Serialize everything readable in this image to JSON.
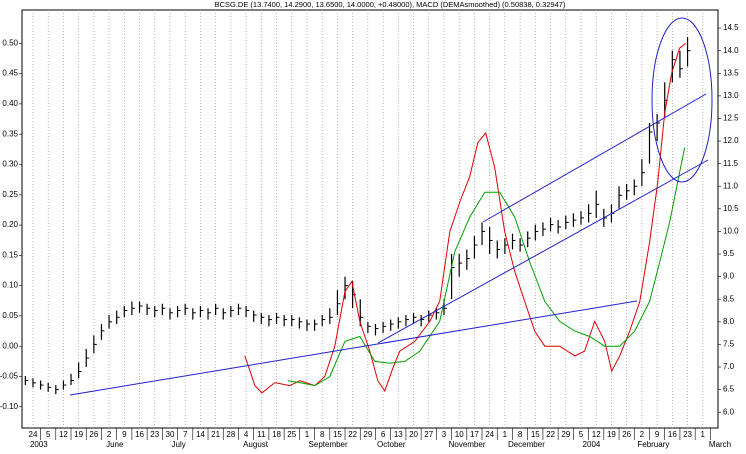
{
  "chart_data": {
    "type": "ohlc",
    "title": "BCSG.DE (13.7400, 14.2900, 13.6500, 14.0000, +0.48000), MACD (DEMAsmoothed) (0.50838, 0.32947)",
    "grid": "x",
    "xlim": [
      -0.72,
      45
    ],
    "xticks": [
      {
        "value": 0,
        "label": "24"
      },
      {
        "value": 1,
        "label": "5"
      },
      {
        "value": 2,
        "label": "12"
      },
      {
        "value": 3,
        "label": "19"
      },
      {
        "value": 4,
        "label": "26"
      },
      {
        "value": 5,
        "label": "2"
      },
      {
        "value": 6,
        "label": "9"
      },
      {
        "value": 7,
        "label": "16"
      },
      {
        "value": 8,
        "label": "23"
      },
      {
        "value": 9,
        "label": "30"
      },
      {
        "value": 10,
        "label": "7"
      },
      {
        "value": 11,
        "label": "14"
      },
      {
        "value": 12,
        "label": "21"
      },
      {
        "value": 13,
        "label": "28"
      },
      {
        "value": 14,
        "label": "4"
      },
      {
        "value": 15,
        "label": "11"
      },
      {
        "value": 16,
        "label": "18"
      },
      {
        "value": 17,
        "label": "25"
      },
      {
        "value": 18,
        "label": "1"
      },
      {
        "value": 19,
        "label": "8"
      },
      {
        "value": 20,
        "label": "15"
      },
      {
        "value": 21,
        "label": "22"
      },
      {
        "value": 22,
        "label": "29"
      },
      {
        "value": 23,
        "label": "6"
      },
      {
        "value": 24,
        "label": "13"
      },
      {
        "value": 25,
        "label": "20"
      },
      {
        "value": 26,
        "label": "27"
      },
      {
        "value": 27,
        "label": "3"
      },
      {
        "value": 28,
        "label": "10"
      },
      {
        "value": 29,
        "label": "17"
      },
      {
        "value": 30,
        "label": "24"
      },
      {
        "value": 31,
        "label": "1"
      },
      {
        "value": 32,
        "label": "8"
      },
      {
        "value": 33,
        "label": "15"
      },
      {
        "value": 34,
        "label": "22"
      },
      {
        "value": 35,
        "label": "29"
      },
      {
        "value": 36,
        "label": "5"
      },
      {
        "value": 37,
        "label": "12"
      },
      {
        "value": 38,
        "label": "19"
      },
      {
        "value": 39,
        "label": "26"
      },
      {
        "value": 40,
        "label": "2"
      },
      {
        "value": 41,
        "label": "9"
      },
      {
        "value": 42,
        "label": "16"
      },
      {
        "value": 43,
        "label": "23"
      },
      {
        "value": 44,
        "label": "1"
      }
    ],
    "month_ticks": [
      {
        "value": 0,
        "label": "2003"
      },
      {
        "value": 5,
        "label": "June"
      },
      {
        "value": 9.3,
        "label": "July"
      },
      {
        "value": 14,
        "label": "August"
      },
      {
        "value": 18.3,
        "label": "September"
      },
      {
        "value": 22.8,
        "label": "October"
      },
      {
        "value": 27.5,
        "label": "November"
      },
      {
        "value": 31.4,
        "label": "December"
      },
      {
        "value": 36.3,
        "label": "2004"
      },
      {
        "value": 39.9,
        "label": "February"
      },
      {
        "value": 44.6,
        "label": "March"
      }
    ],
    "ylim": [
      -0.135,
      0.555
    ],
    "yticks": [
      {
        "value": -0.1,
        "label": "-0.10"
      },
      -0.05,
      {
        "value": 0,
        "label": "0.00"
      },
      0.05,
      {
        "value": 0.1,
        "label": "0.10"
      },
      0.15,
      {
        "value": 0.2,
        "label": "0.20"
      },
      0.25,
      {
        "value": 0.3,
        "label": "0.30"
      },
      0.35,
      {
        "value": 0.4,
        "label": "0.40"
      },
      0.45,
      {
        "value": 0.5,
        "label": "0.50"
      }
    ],
    "y2lim": [
      5.65,
      14.9
    ],
    "y2ticks": [
      {
        "value": 6,
        "label": "6.0"
      },
      6.5,
      {
        "value": 7,
        "label": "7.0"
      },
      7.5,
      {
        "value": 8,
        "label": "8.0"
      },
      8.5,
      {
        "value": 9,
        "label": "9.0"
      },
      9.5,
      {
        "value": 10,
        "label": "10.0"
      },
      10.5,
      {
        "value": 11,
        "label": "11.0"
      },
      11.5,
      {
        "value": 12,
        "label": "12.0"
      },
      12.5,
      {
        "value": 13,
        "label": "13.0"
      },
      13.5,
      {
        "value": 14,
        "label": "14.0"
      },
      14.5
    ],
    "series": [
      {
        "type": "ohlc",
        "axis": "y2",
        "color": "#000000",
        "x": [
          -0.5,
          0,
          0.5,
          1,
          1.5,
          2,
          2.5,
          3,
          3.5,
          4,
          4.5,
          5,
          5.5,
          6,
          6.5,
          7,
          7.5,
          8,
          8.5,
          9,
          9.5,
          10,
          10.5,
          11,
          11.5,
          12,
          12.5,
          13,
          13.5,
          14,
          14.5,
          15,
          15.5,
          16,
          16.5,
          17,
          17.5,
          18,
          18.5,
          19,
          19.5,
          20,
          20.5,
          21,
          21.5,
          22,
          22.5,
          23,
          23.5,
          24,
          24.5,
          25,
          25.5,
          26,
          26.5,
          27,
          27.5,
          28,
          28.5,
          29,
          29.5,
          30,
          30.5,
          31,
          31.5,
          32,
          32.5,
          33,
          33.5,
          34,
          34.5,
          35,
          35.5,
          36,
          36.5,
          37,
          37.5,
          38,
          38.5,
          39,
          39.5,
          40,
          40.5,
          41,
          41.5,
          42,
          42.5,
          43
        ],
        "high": [
          6.8,
          6.75,
          6.7,
          6.65,
          6.6,
          6.7,
          6.85,
          7.1,
          7.4,
          7.7,
          7.95,
          8.15,
          8.25,
          8.35,
          8.45,
          8.45,
          8.4,
          8.35,
          8.4,
          8.3,
          8.35,
          8.4,
          8.3,
          8.35,
          8.3,
          8.4,
          8.3,
          8.35,
          8.4,
          8.35,
          8.25,
          8.2,
          8.15,
          8.2,
          8.15,
          8.15,
          8.1,
          8.05,
          8.05,
          8.15,
          8.3,
          8.7,
          9.0,
          8.9,
          8.5,
          8.0,
          7.95,
          8.0,
          8.05,
          8.1,
          8.15,
          8.2,
          8.15,
          8.25,
          8.3,
          8.5,
          9.5,
          9.5,
          9.6,
          9.9,
          10.2,
          10.1,
          9.8,
          9.85,
          9.95,
          9.85,
          10.0,
          10.15,
          10.2,
          10.3,
          10.25,
          10.35,
          10.4,
          10.45,
          10.6,
          10.9,
          10.5,
          10.6,
          11.0,
          11.05,
          11.15,
          11.6,
          12.4,
          12.6,
          13.3,
          14.0,
          14.0,
          14.3
        ],
        "low": [
          6.6,
          6.55,
          6.5,
          6.45,
          6.4,
          6.5,
          6.6,
          6.75,
          7.0,
          7.3,
          7.6,
          7.85,
          7.95,
          8.1,
          8.15,
          8.2,
          8.15,
          8.1,
          8.15,
          8.05,
          8.1,
          8.15,
          8.05,
          8.1,
          8.05,
          8.15,
          8.05,
          8.1,
          8.15,
          8.1,
          8.0,
          7.95,
          7.9,
          7.95,
          7.9,
          7.9,
          7.85,
          7.8,
          7.8,
          7.9,
          7.95,
          8.15,
          8.5,
          8.3,
          7.9,
          7.75,
          7.7,
          7.75,
          7.8,
          7.85,
          7.9,
          7.95,
          7.9,
          8.0,
          8.05,
          8.15,
          8.5,
          9.0,
          9.15,
          9.4,
          9.7,
          9.5,
          9.4,
          9.5,
          9.6,
          9.55,
          9.65,
          9.8,
          9.9,
          10.0,
          9.95,
          10.05,
          10.1,
          10.15,
          10.2,
          10.3,
          10.1,
          10.2,
          10.5,
          10.7,
          10.8,
          11.0,
          11.5,
          12.0,
          12.5,
          13.3,
          13.4,
          13.65
        ],
        "close": [
          6.7,
          6.65,
          6.6,
          6.55,
          6.5,
          6.6,
          6.7,
          6.9,
          7.2,
          7.5,
          7.8,
          8.0,
          8.1,
          8.25,
          8.3,
          8.35,
          8.3,
          8.25,
          8.3,
          8.2,
          8.25,
          8.3,
          8.2,
          8.25,
          8.2,
          8.3,
          8.2,
          8.25,
          8.3,
          8.25,
          8.15,
          8.1,
          8.05,
          8.1,
          8.05,
          8.05,
          8.0,
          7.95,
          7.95,
          8.05,
          8.1,
          8.4,
          8.8,
          8.6,
          8.1,
          7.9,
          7.85,
          7.9,
          7.95,
          8.0,
          8.05,
          8.1,
          8.05,
          8.15,
          8.2,
          8.3,
          9.2,
          9.3,
          9.4,
          9.7,
          10.0,
          9.8,
          9.6,
          9.7,
          9.8,
          9.7,
          9.85,
          10.0,
          10.05,
          10.15,
          10.1,
          10.2,
          10.25,
          10.3,
          10.4,
          10.6,
          10.3,
          10.4,
          10.8,
          10.9,
          11.0,
          11.3,
          12.2,
          12.4,
          12.9,
          13.8,
          13.6,
          14.0
        ]
      },
      {
        "type": "line",
        "color": "#e00000",
        "x": [
          13.92,
          14.58,
          15.04,
          15.89,
          16.87,
          17.53,
          18.52,
          19.17,
          19.83,
          20.49,
          20.95,
          21.47,
          22.13,
          22.65,
          23.11,
          23.57,
          24.1,
          25.08,
          26.07,
          26.72,
          27.38,
          28.04,
          28.69,
          29.22,
          29.74,
          30.33,
          30.99,
          31.65,
          32.3,
          32.96,
          33.62,
          34.6,
          35.59,
          36.24,
          36.9,
          37.56,
          38.02,
          38.54,
          39.2,
          39.86,
          40.51,
          41.04,
          41.5,
          41.96,
          42.48,
          42.88
        ],
        "values": [
          -0.016,
          -0.065,
          -0.077,
          -0.06,
          -0.065,
          -0.057,
          -0.065,
          -0.05,
          0,
          0.09,
          0.107,
          0.041,
          -0.008,
          -0.057,
          -0.074,
          -0.041,
          -0.008,
          0.008,
          0.041,
          0.074,
          0.189,
          0.238,
          0.28,
          0.336,
          0.352,
          0.295,
          0.189,
          0.123,
          0.074,
          0.025,
          0,
          0,
          -0.016,
          -0.008,
          0.041,
          0.008,
          -0.041,
          -0.016,
          0.025,
          0.074,
          0.172,
          0.27,
          0.385,
          0.451,
          0.492,
          0.5
        ]
      },
      {
        "type": "line",
        "color": "#00a000",
        "x": [
          16.74,
          17.53,
          18.52,
          19.5,
          20.49,
          21.47,
          22.46,
          23.44,
          24.43,
          25.41,
          26.72,
          27.71,
          28.69,
          29.68,
          30.66,
          31.65,
          32.63,
          33.62,
          34.6,
          35.59,
          36.57,
          37.56,
          38.54,
          39.53,
          40.51,
          41.17,
          41.83,
          42.48,
          42.81
        ],
        "values": [
          -0.057,
          -0.06,
          -0.065,
          -0.05,
          0.008,
          0.016,
          -0.025,
          -0.028,
          -0.025,
          -0.008,
          0.041,
          0.156,
          0.213,
          0.254,
          0.254,
          0.213,
          0.139,
          0.074,
          0.041,
          0.025,
          0.016,
          0,
          0,
          0.025,
          0.074,
          0.139,
          0.205,
          0.287,
          0.328
        ]
      }
    ]
  }
}
